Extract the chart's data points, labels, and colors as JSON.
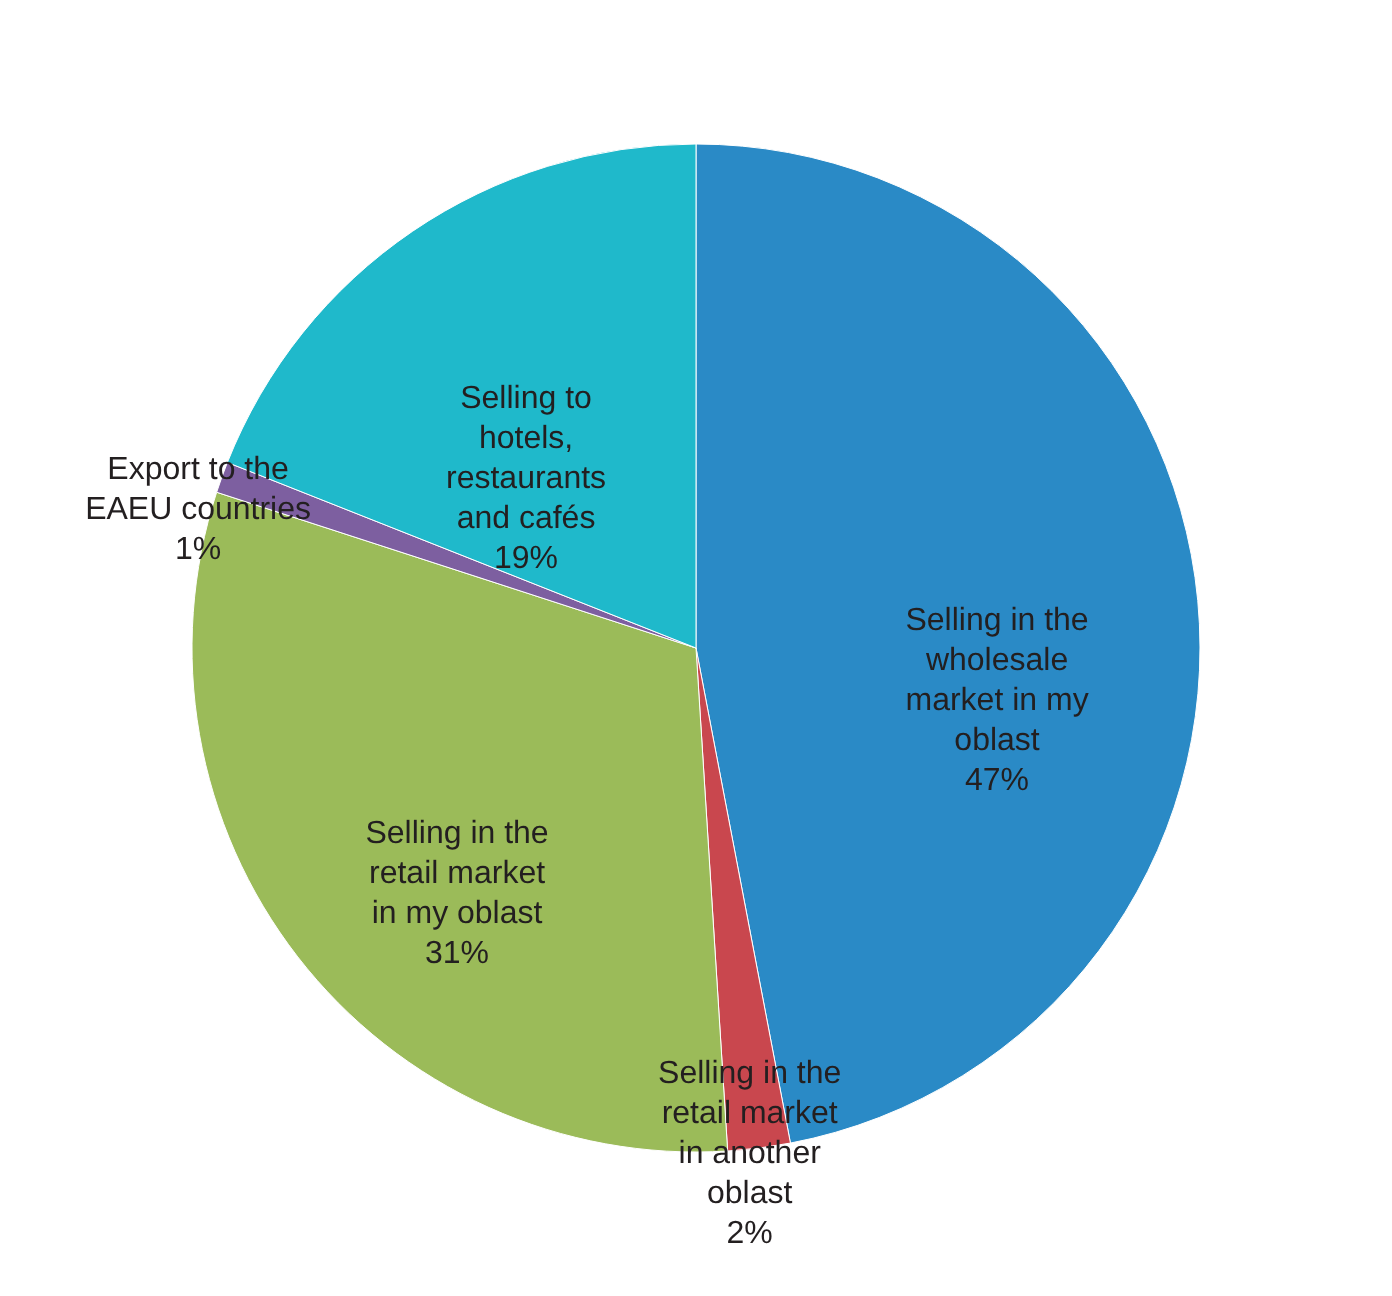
{
  "chart_data": {
    "type": "pie",
    "categories": [
      "Selling in the wholesale market in my oblast",
      "Selling in the retail market in another oblast",
      "Selling in the retail market in my oblast",
      "Export to the EAEU countries",
      "Selling to hotels, restaurants and cafés"
    ],
    "values": [
      47,
      2,
      31,
      1,
      19
    ],
    "colors": [
      "#2a8ac6",
      "#c9474e",
      "#9bbb59",
      "#7d5fa0",
      "#1fb9cb"
    ],
    "value_labels": [
      "47%",
      "2%",
      "31%",
      "1%",
      "19%"
    ]
  }
}
